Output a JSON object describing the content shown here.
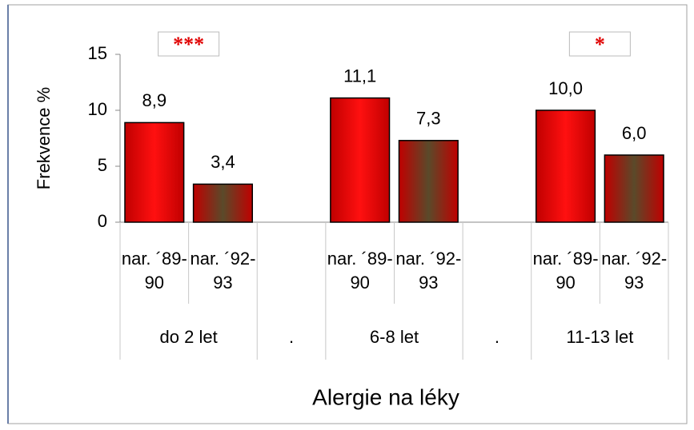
{
  "chart_data": {
    "type": "bar",
    "y_label": "Frekvence %",
    "x_label": "Alergie na léky",
    "categories": [
      "nar. ´89-90",
      "nar. ´92-93",
      null,
      "nar. ´89-90",
      "nar. ´92-93",
      null,
      "nar. ´89-90",
      "nar. ´92-93"
    ],
    "groups": [
      {
        "label": "do 2 let",
        "size": 2
      },
      {
        "label": ".",
        "size": 1
      },
      {
        "label": "6-8 let",
        "size": 2
      },
      {
        "label": ".",
        "size": 1
      },
      {
        "label": "11-13 let",
        "size": 2
      }
    ],
    "values": [
      8.9,
      3.4,
      null,
      11.1,
      7.3,
      null,
      10.0,
      6.0
    ],
    "value_labels": [
      "8,9",
      "3,4",
      null,
      "11,1",
      "7,3",
      null,
      "10,0",
      "6,0"
    ],
    "colors": [
      "#ff1010",
      "#5a4a2a",
      null,
      "#ff1010",
      "#5a4a2a",
      null,
      "#ff1010",
      "#5a4a2a"
    ],
    "edge_color": "#c00000",
    "ylim": [
      0,
      15
    ],
    "yticks": [
      0,
      5,
      10,
      15
    ],
    "annotations": [
      {
        "text": "***",
        "group": 0
      },
      {
        "text": "*",
        "group": 4
      }
    ]
  }
}
